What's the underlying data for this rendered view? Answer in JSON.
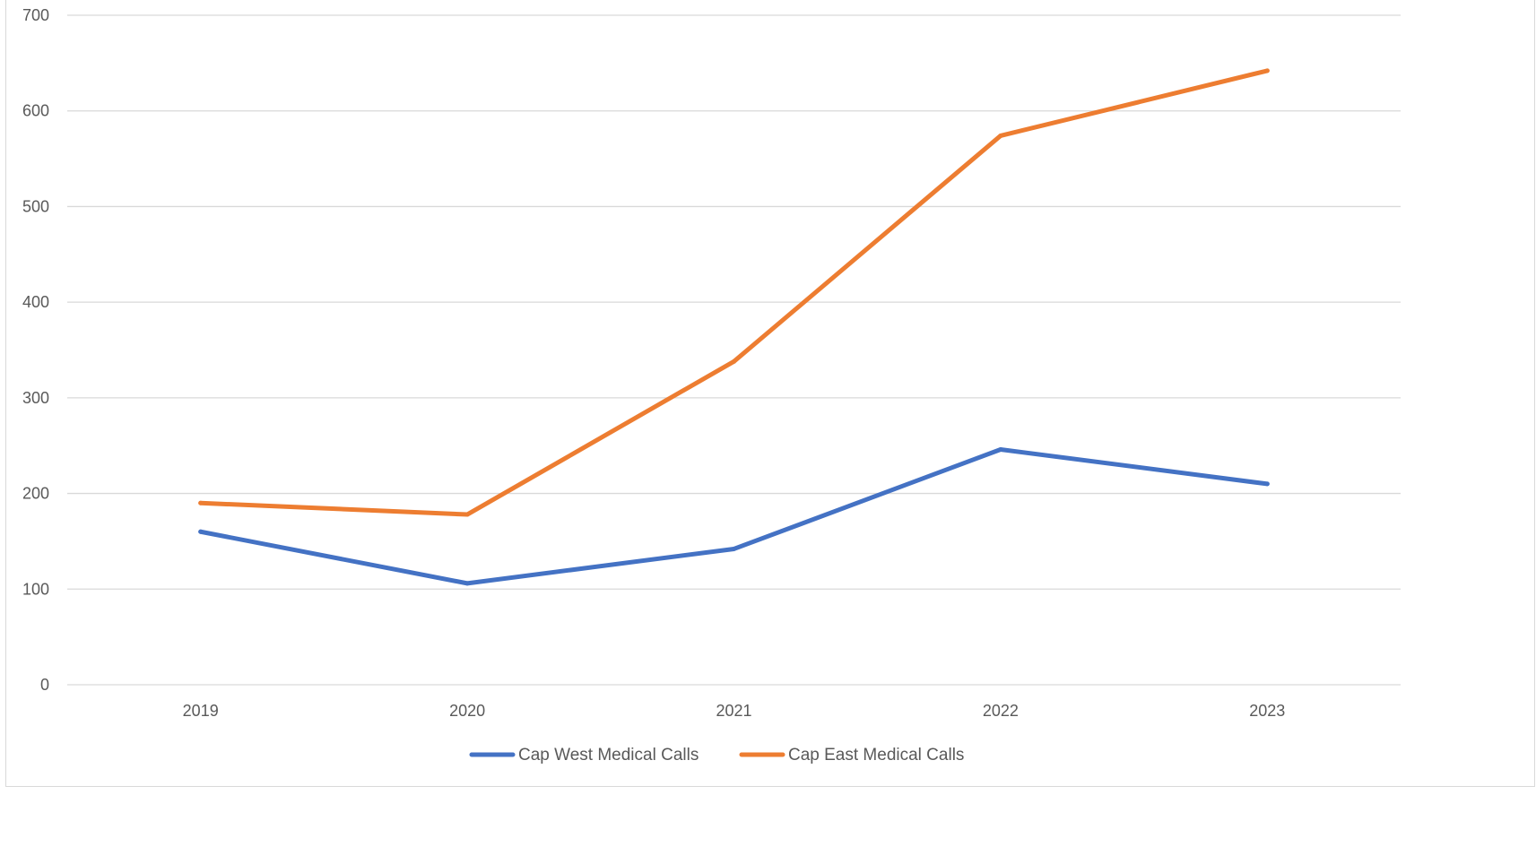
{
  "chart_data": {
    "type": "line",
    "title": "",
    "xlabel": "",
    "ylabel": "",
    "categories": [
      "2019",
      "2020",
      "2021",
      "2022",
      "2023"
    ],
    "ylim": [
      0,
      700
    ],
    "yticks": [
      "0",
      "100",
      "200",
      "300",
      "400",
      "500",
      "600",
      "700"
    ],
    "grid": "horizontal",
    "legend_position": "bottom",
    "series": [
      {
        "name": "Cap West Medical Calls",
        "color": "#4472c4",
        "values": [
          160,
          106,
          142,
          246,
          210
        ]
      },
      {
        "name": "Cap East Medical Calls",
        "color": "#ed7d31",
        "values": [
          190,
          178,
          338,
          574,
          642
        ]
      }
    ]
  }
}
